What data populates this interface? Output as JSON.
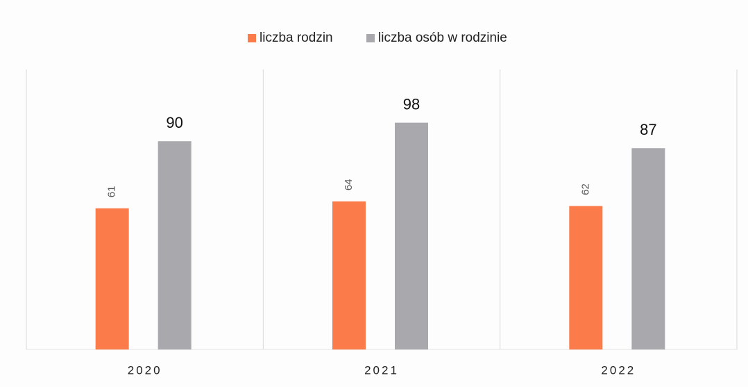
{
  "chart_data": {
    "type": "bar",
    "categories": [
      "2020",
      "2021",
      "2022"
    ],
    "series": [
      {
        "name": "liczba rodzin",
        "color": "#fb7c4a",
        "values": [
          61,
          64,
          62
        ]
      },
      {
        "name": "liczba osób w rodzinie",
        "color": "#a9a8ad",
        "values": [
          90,
          98,
          87
        ]
      }
    ],
    "ylim": [
      0,
      121
    ],
    "legend": "top"
  }
}
